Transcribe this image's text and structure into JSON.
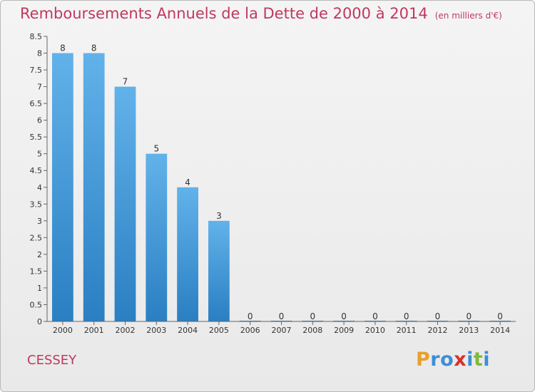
{
  "title": "Remboursements Annuels de la Dette de 2000 à 2014",
  "title_unit": "(en milliers d'€)",
  "commune": "CESSEY",
  "logo": {
    "letters": [
      "P",
      "r",
      "o",
      "x",
      "i",
      "t",
      "i"
    ],
    "colors": [
      "#e8a02c",
      "#3b8fd6",
      "#3b8fd6",
      "#d9312b",
      "#3b8fd6",
      "#7fba3a",
      "#3b8fd6"
    ]
  },
  "colors": {
    "bar_top": "#62b2ea",
    "bar_bottom": "#2a7fc2",
    "title": "#c0385f",
    "axis": "#666666"
  },
  "chart_data": {
    "type": "bar",
    "categories": [
      "2000",
      "2001",
      "2002",
      "2003",
      "2004",
      "2005",
      "2006",
      "2007",
      "2008",
      "2009",
      "2010",
      "2011",
      "2012",
      "2013",
      "2014"
    ],
    "values": [
      8,
      8,
      7,
      5,
      4,
      3,
      0,
      0,
      0,
      0,
      0,
      0,
      0,
      0,
      0
    ],
    "data_labels": [
      "8",
      "8",
      "7",
      "5",
      "4",
      "3",
      "0",
      "0",
      "0",
      "0",
      "0",
      "0",
      "0",
      "0",
      "0"
    ],
    "ylim": [
      0,
      8.5
    ],
    "yticks": [
      0,
      0.5,
      1,
      1.5,
      2,
      2.5,
      3,
      3.5,
      4,
      4.5,
      5,
      5.5,
      6,
      6.5,
      7,
      7.5,
      8,
      8.5
    ],
    "ytick_labels": [
      "0",
      "0.5",
      "1",
      "1.5",
      "2",
      "2.5",
      "3",
      "3.5",
      "4",
      "4.5",
      "5",
      "5.5",
      "6",
      "6.5",
      "7",
      "7.5",
      "8",
      "8.5"
    ],
    "xlabel": "",
    "ylabel": "",
    "grid": false,
    "legend": false
  }
}
